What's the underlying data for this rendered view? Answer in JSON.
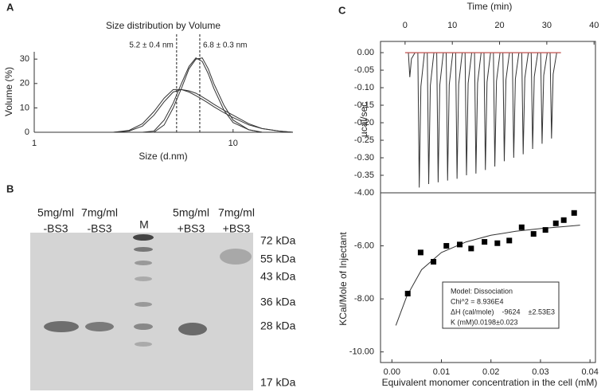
{
  "chart_data": [
    {
      "panel": "A",
      "type": "line",
      "title": "Size distribution by Volume",
      "xlabel": "Size (d.nm)",
      "ylabel": "Volume (%)",
      "log_x": true,
      "x": [
        2.5,
        3,
        3.5,
        4,
        4.5,
        5,
        5.5,
        6,
        6.5,
        7,
        7.5,
        8,
        9,
        10,
        12,
        14,
        17,
        20
      ],
      "series": [
        {
          "color": "#333333",
          "values": [
            0,
            0.8,
            3.5,
            8.5,
            14,
            17.5,
            17.5,
            16.5,
            15,
            13.5,
            12,
            10.5,
            8,
            6,
            3,
            1.5,
            0.5,
            0
          ]
        },
        {
          "color": "#333333",
          "values": [
            0,
            0.5,
            2.5,
            7,
            12.5,
            16.5,
            17.5,
            17,
            16,
            14.5,
            13,
            11.5,
            9,
            7,
            3.5,
            1.5,
            0.5,
            0
          ]
        },
        {
          "color": "#333333",
          "values": [
            0,
            0,
            0,
            0.5,
            5,
            12,
            20,
            27,
            30.5,
            29,
            24,
            18,
            9,
            4,
            1,
            0,
            0,
            0
          ]
        },
        {
          "color": "#333333",
          "values": [
            0,
            0,
            0,
            0,
            3,
            10,
            18,
            26,
            30,
            30.5,
            26,
            20,
            11,
            5,
            1,
            0,
            0,
            0
          ]
        }
      ],
      "xlim": [
        1,
        20
      ],
      "xticks": [
        1,
        10
      ],
      "ylim": [
        0,
        33
      ],
      "yticks": [
        0,
        10,
        20,
        30
      ],
      "annotations": [
        {
          "text": "5.2 ± 0.4 nm",
          "x": 5.2
        },
        {
          "text": "6.8 ± 0.3 nm",
          "x": 6.8
        }
      ]
    },
    {
      "panel": "C",
      "type": "thermogram",
      "xlabel": "Time (min)",
      "ylabel": "µcal/sec",
      "color": "#333333",
      "x": [
        1,
        3,
        5,
        7,
        9,
        11,
        13,
        15,
        17,
        19,
        21,
        23,
        25,
        27,
        29,
        31
      ],
      "values": [
        -0.07,
        -0.385,
        -0.375,
        -0.37,
        -0.365,
        -0.36,
        -0.35,
        -0.345,
        -0.335,
        -0.325,
        -0.31,
        -0.3,
        -0.29,
        -0.275,
        -0.26,
        -0.245
      ],
      "baseline": {
        "color": "#c0504d",
        "x": [
          0,
          33
        ],
        "values": [
          0,
          0
        ]
      },
      "xlim": [
        -5.2,
        40.3
      ],
      "xticks": [
        0,
        10,
        20,
        30,
        40
      ],
      "ylim": [
        -0.4,
        0.032
      ],
      "yticks": [
        {
          "value": 0,
          "label": "0.00"
        },
        {
          "value": -0.05,
          "label": "-0.05"
        },
        {
          "value": -0.1,
          "label": "-0.10"
        },
        {
          "value": -0.15,
          "label": "-0.15"
        },
        {
          "value": -0.2,
          "label": "-0.20"
        },
        {
          "value": -0.25,
          "label": "-0.25"
        },
        {
          "value": -0.3,
          "label": "-0.30"
        },
        {
          "value": -0.35,
          "label": "-0.35"
        }
      ]
    },
    {
      "type": "scatter",
      "xlabel": "Equivalent monomer concentration in the cell (mM)",
      "ylabel": "KCal/Mole of Injectant",
      "color": "#000000",
      "x": [
        0.0032,
        0.0058,
        0.0084,
        0.011,
        0.0137,
        0.016,
        0.0187,
        0.0213,
        0.0237,
        0.0262,
        0.0286,
        0.031,
        0.0331,
        0.0347,
        0.0368
      ],
      "values": [
        -7.8,
        -6.25,
        -6.6,
        -6.0,
        -5.95,
        -6.1,
        -5.85,
        -5.9,
        -5.8,
        -5.3,
        -5.55,
        -5.4,
        -5.15,
        -5.03,
        -4.76
      ],
      "fit": {
        "color": "#333333",
        "x": [
          0.0008,
          0.003,
          0.006,
          0.01,
          0.015,
          0.02,
          0.025,
          0.03,
          0.035,
          0.038
        ],
        "values": [
          -9.0,
          -7.9,
          -6.9,
          -6.25,
          -5.85,
          -5.6,
          -5.45,
          -5.35,
          -5.27,
          -5.22
        ]
      },
      "xlim": [
        -0.0023,
        0.0411
      ],
      "xticks": [
        {
          "value": 0,
          "label": "0.00"
        },
        {
          "value": 0.01,
          "label": "0.01"
        },
        {
          "value": 0.02,
          "label": "0.02"
        },
        {
          "value": 0.03,
          "label": "0.03"
        },
        {
          "value": 0.04,
          "label": "0.04"
        }
      ],
      "ylim": [
        -10.4,
        -4.0
      ],
      "yticks": [
        {
          "value": -4,
          "label": "-4.00"
        },
        {
          "value": -6,
          "label": "-6.00"
        },
        {
          "value": -8,
          "label": "-8.00"
        },
        {
          "value": -10,
          "label": "-10.00"
        }
      ],
      "annotations": [
        "Model: Dissociation",
        "Chi^2 = 8.936E4",
        "ΔH (cal/mole)    -9624    ±2.53E3",
        "K (mM)0.0198±0.023"
      ]
    }
  ],
  "gel": {
    "panel": "B",
    "lanes": [
      [
        "5mg/ml",
        "-BS3"
      ],
      [
        "7mg/ml",
        "-BS3"
      ],
      [
        "M"
      ],
      [
        "5mg/ml",
        "+BS3"
      ],
      [
        "7mg/ml",
        "+BS3"
      ]
    ],
    "markers": [
      "72 kDa",
      "55 kDa",
      "43 kDa",
      "36 kDa",
      "28 kDa",
      "17 kDa"
    ]
  }
}
